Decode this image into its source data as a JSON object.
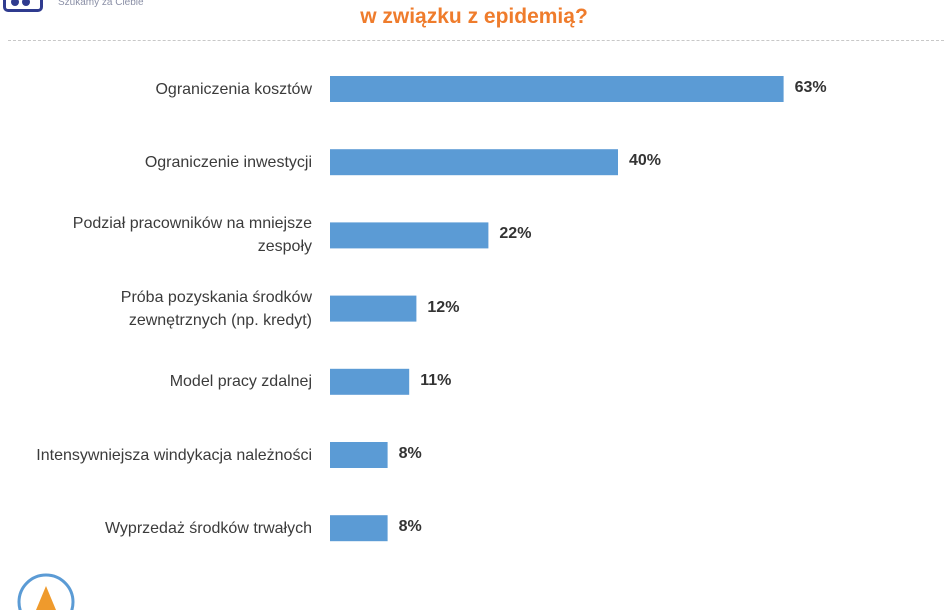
{
  "header": {
    "tagline": "Szukamy za Ciebie",
    "title": "w związku z epidemią?"
  },
  "colors": {
    "bar": "#5b9bd5",
    "title": "#ef7c2c",
    "logo": "#2f3b8f"
  },
  "chart_data": {
    "type": "bar",
    "orientation": "horizontal",
    "title": "w związku z epidemią?",
    "categories": [
      "Ograniczenia kosztów",
      "Ograniczenie inwestycji",
      "Podział pracowników na mniejsze zespoły",
      "Próba pozyskania środków zewnętrznych (np. kredyt)",
      "Model pracy zdalnej",
      "Intensywniejsza windykacja należności",
      "Wyprzedaż środków trwałych"
    ],
    "values": [
      63,
      40,
      22,
      12,
      11,
      8,
      8
    ],
    "value_labels": [
      "63%",
      "40%",
      "22%",
      "12%",
      "11%",
      "8%",
      "8%"
    ],
    "unit": "%",
    "grid": false,
    "legend": false
  }
}
